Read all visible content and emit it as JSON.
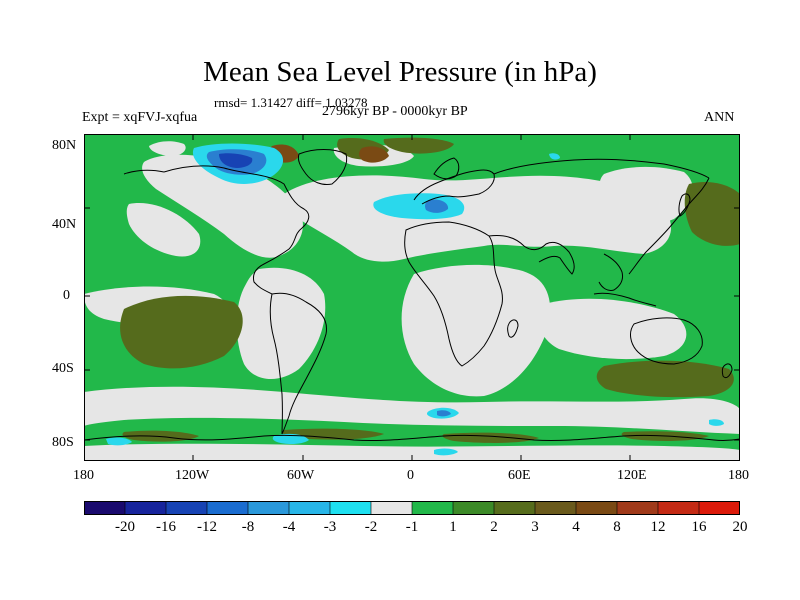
{
  "title": "Mean Sea Level Pressure (in hPa)",
  "stats": {
    "rmsd": "rmsd= 1.31427",
    "diff": "diff= 1.03278"
  },
  "experiment": "Expt = xqFVJ-xqfua",
  "period": "2796kyr BP - 0000kyr BP",
  "season": "ANN",
  "lat_labels": [
    "80N",
    "40N",
    "0",
    "40S",
    "80S"
  ],
  "lon_labels": [
    "180",
    "120W",
    "60W",
    "0",
    "60E",
    "120E",
    "180"
  ],
  "colorbar": {
    "colors": [
      "#1a0a6e",
      "#17249c",
      "#1743b4",
      "#1a6cd0",
      "#2a98da",
      "#28b6e8",
      "#1ee0f0",
      "#e6e6e6",
      "#22b84a",
      "#3c8a28",
      "#566c1c",
      "#6a5a1c",
      "#7a4a14",
      "#a03a1a",
      "#c42a14",
      "#dc1a0a"
    ],
    "labels": [
      "-20",
      "-16",
      "-12",
      "-8",
      "-4",
      "-3",
      "-2",
      "-1",
      "1",
      "2",
      "3",
      "4",
      "8",
      "12",
      "16",
      "20"
    ]
  },
  "palette": {
    "gray": "#e6e6e6",
    "green": "#22b84a",
    "olive": "#556b1c",
    "brown": "#7a4a14",
    "cyan": "#2ad8ec",
    "blue": "#2a7fd0",
    "navy": "#1743b4"
  }
}
